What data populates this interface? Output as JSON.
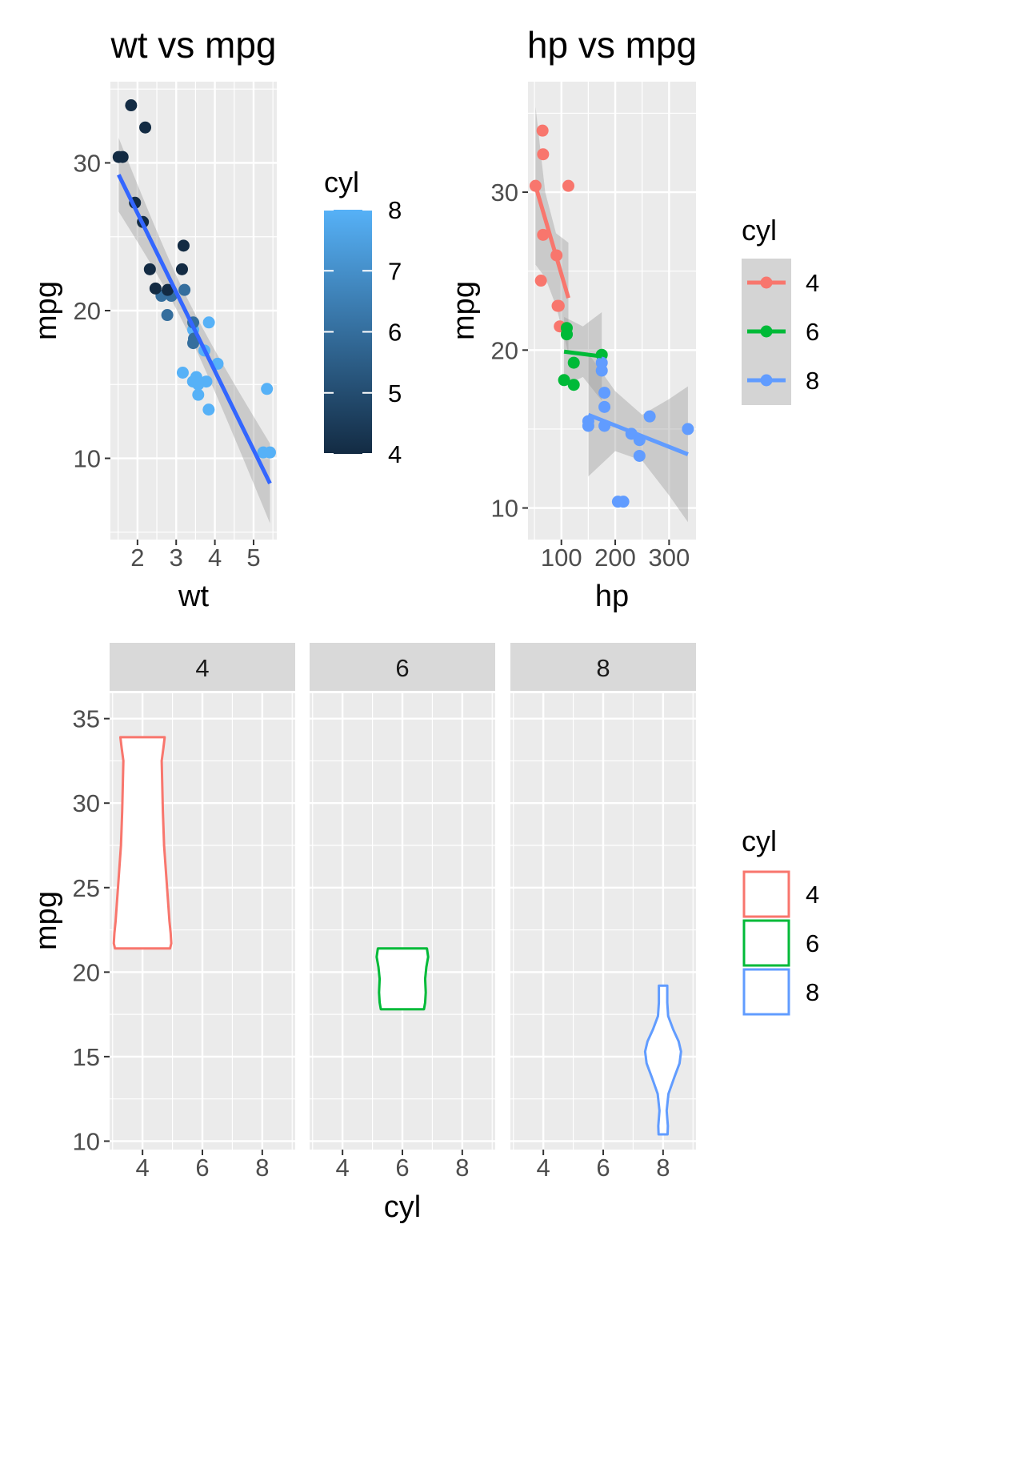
{
  "colors": {
    "panel_bg": "#EBEBEB",
    "grid": "#FFFFFF",
    "strip_bg": "#D9D9D9",
    "text": "#000000",
    "tick_text": "#4D4D4D",
    "cyl4": "#F8766D",
    "cyl6": "#00BA38",
    "cyl8": "#619CFF",
    "fit_line_wt": "#3366FF",
    "ribbon": "#999999",
    "gradient_low": "#132B43",
    "gradient_high": "#56B1F7"
  },
  "chart_data": [
    {
      "type": "scatter",
      "title": "wt vs mpg",
      "xlabel": "wt",
      "ylabel": "mpg",
      "xlim": [
        1.3,
        5.6
      ],
      "ylim": [
        4.5,
        35.5
      ],
      "xticks": [
        2,
        3,
        4,
        5
      ],
      "yticks": [
        10,
        20,
        30
      ],
      "grid": true,
      "color_by": "cyl (continuous)",
      "legend": {
        "title": "cyl",
        "placement": "right",
        "type": "colorbar",
        "range": [
          4,
          8
        ],
        "ticks": [
          4,
          5,
          6,
          7,
          8
        ]
      },
      "points": [
        {
          "x": 2.62,
          "y": 21.0,
          "cyl": 6
        },
        {
          "x": 2.875,
          "y": 21.0,
          "cyl": 6
        },
        {
          "x": 2.32,
          "y": 22.8,
          "cyl": 4
        },
        {
          "x": 3.215,
          "y": 21.4,
          "cyl": 6
        },
        {
          "x": 3.44,
          "y": 18.7,
          "cyl": 8
        },
        {
          "x": 3.46,
          "y": 18.1,
          "cyl": 6
        },
        {
          "x": 3.57,
          "y": 14.3,
          "cyl": 8
        },
        {
          "x": 3.19,
          "y": 24.4,
          "cyl": 4
        },
        {
          "x": 3.15,
          "y": 22.8,
          "cyl": 4
        },
        {
          "x": 3.44,
          "y": 19.2,
          "cyl": 6
        },
        {
          "x": 3.44,
          "y": 17.8,
          "cyl": 6
        },
        {
          "x": 4.07,
          "y": 16.4,
          "cyl": 8
        },
        {
          "x": 3.73,
          "y": 17.3,
          "cyl": 8
        },
        {
          "x": 3.78,
          "y": 15.2,
          "cyl": 8
        },
        {
          "x": 5.25,
          "y": 10.4,
          "cyl": 8
        },
        {
          "x": 5.424,
          "y": 10.4,
          "cyl": 8
        },
        {
          "x": 5.345,
          "y": 14.7,
          "cyl": 8
        },
        {
          "x": 2.2,
          "y": 32.4,
          "cyl": 4
        },
        {
          "x": 1.615,
          "y": 30.4,
          "cyl": 4
        },
        {
          "x": 1.835,
          "y": 33.9,
          "cyl": 4
        },
        {
          "x": 2.465,
          "y": 21.5,
          "cyl": 4
        },
        {
          "x": 3.52,
          "y": 15.5,
          "cyl": 8
        },
        {
          "x": 3.435,
          "y": 15.2,
          "cyl": 8
        },
        {
          "x": 3.84,
          "y": 13.3,
          "cyl": 8
        },
        {
          "x": 3.845,
          "y": 19.2,
          "cyl": 8
        },
        {
          "x": 1.935,
          "y": 27.3,
          "cyl": 4
        },
        {
          "x": 2.14,
          "y": 26.0,
          "cyl": 4
        },
        {
          "x": 1.513,
          "y": 30.4,
          "cyl": 4
        },
        {
          "x": 3.17,
          "y": 15.8,
          "cyl": 8
        },
        {
          "x": 2.77,
          "y": 19.7,
          "cyl": 6
        },
        {
          "x": 3.57,
          "y": 15.0,
          "cyl": 8
        },
        {
          "x": 2.78,
          "y": 21.4,
          "cyl": 4
        }
      ],
      "fit": {
        "intercept": 37.285,
        "slope": -5.344,
        "x_range": [
          1.513,
          5.424
        ],
        "band_halfwidth_at_ends": [
          2.5,
          2.7
        ],
        "band_halfwidth_center": 1.1,
        "x_center": 3.217
      }
    },
    {
      "type": "scatter",
      "title": "hp vs mpg",
      "xlabel": "hp",
      "ylabel": "mpg",
      "xlim": [
        38,
        350
      ],
      "ylim": [
        8,
        37
      ],
      "xticks": [
        100,
        200,
        300
      ],
      "yticks": [
        10,
        20,
        30
      ],
      "grid": true,
      "color_by": "cyl (discrete)",
      "legend": {
        "title": "cyl",
        "placement": "right",
        "entries": [
          "4",
          "6",
          "8"
        ]
      },
      "series": [
        {
          "name": "4",
          "points": [
            [
              93,
              22.8
            ],
            [
              62,
              24.4
            ],
            [
              95,
              22.8
            ],
            [
              66,
              32.4
            ],
            [
              52,
              30.4
            ],
            [
              65,
              33.9
            ],
            [
              97,
              21.5
            ],
            [
              66,
              27.3
            ],
            [
              91,
              26.0
            ],
            [
              113,
              30.4
            ],
            [
              109,
              21.4
            ]
          ],
          "fit": {
            "x_range": [
              52,
              113
            ],
            "y_range": [
              30.4,
              23.3
            ]
          },
          "band": {
            "upper": [
              [
                52,
                35.4
              ],
              [
                70,
                30.0
              ],
              [
                90,
                27.4
              ],
              [
                113,
                26.8
              ]
            ],
            "lower": [
              [
                52,
                25.4
              ],
              [
                70,
                24.6
              ],
              [
                90,
                22.8
              ],
              [
                113,
                19.8
              ]
            ]
          }
        },
        {
          "name": "6",
          "points": [
            [
              110,
              21.0
            ],
            [
              110,
              21.0
            ],
            [
              110,
              21.4
            ],
            [
              105,
              18.1
            ],
            [
              123,
              19.2
            ],
            [
              123,
              17.8
            ],
            [
              175,
              19.7
            ]
          ],
          "fit": {
            "x_range": [
              105,
              175
            ],
            "y_range": [
              19.9,
              19.6
            ]
          },
          "band": {
            "upper": [
              [
                105,
                22.1
              ],
              [
                140,
                21.5
              ],
              [
                175,
                22.4
              ]
            ],
            "lower": [
              [
                105,
                17.7
              ],
              [
                140,
                18.3
              ],
              [
                175,
                16.8
              ]
            ]
          }
        },
        {
          "name": "8",
          "points": [
            [
              175,
              18.7
            ],
            [
              245,
              14.3
            ],
            [
              180,
              16.4
            ],
            [
              180,
              17.3
            ],
            [
              180,
              15.2
            ],
            [
              205,
              10.4
            ],
            [
              215,
              10.4
            ],
            [
              230,
              14.7
            ],
            [
              150,
              15.5
            ],
            [
              150,
              15.2
            ],
            [
              245,
              13.3
            ],
            [
              175,
              19.2
            ],
            [
              264,
              15.8
            ],
            [
              335,
              15.0
            ]
          ],
          "fit": {
            "x_range": [
              150,
              335
            ],
            "y_range": [
              15.9,
              13.4
            ]
          },
          "band": {
            "upper": [
              [
                150,
                19.8
              ],
              [
                200,
                17.4
              ],
              [
                250,
                15.9
              ],
              [
                300,
                16.9
              ],
              [
                335,
                17.7
              ]
            ],
            "lower": [
              [
                150,
                12.0
              ],
              [
                200,
                13.6
              ],
              [
                250,
                13.0
              ],
              [
                300,
                10.8
              ],
              [
                335,
                9.1
              ]
            ]
          }
        }
      ]
    },
    {
      "type": "violin",
      "facet_by": "cyl",
      "facets": [
        "4",
        "6",
        "8"
      ],
      "xlabel": "cyl",
      "ylabel": "mpg",
      "xlim": [
        2.9,
        9.1
      ],
      "ylim": [
        9.5,
        36.5
      ],
      "xticks": [
        4,
        6,
        8
      ],
      "yticks": [
        10,
        15,
        20,
        25,
        30,
        35
      ],
      "grid": true,
      "fill": "#FFFFFF",
      "legend": {
        "title": "cyl",
        "placement": "right",
        "entries": [
          "4",
          "6",
          "8"
        ]
      },
      "violins": [
        {
          "facet": "4",
          "x": 4,
          "profile": [
            [
              21.4,
              0.92
            ],
            [
              21.7,
              0.96
            ],
            [
              22.3,
              0.94
            ],
            [
              23.0,
              0.9
            ],
            [
              24.0,
              0.86
            ],
            [
              25.5,
              0.8
            ],
            [
              27.5,
              0.72
            ],
            [
              29.5,
              0.68
            ],
            [
              31.0,
              0.66
            ],
            [
              32.5,
              0.64
            ],
            [
              33.3,
              0.7
            ],
            [
              33.9,
              0.74
            ]
          ]
        },
        {
          "facet": "6",
          "x": 6,
          "profile": [
            [
              17.8,
              0.72
            ],
            [
              18.2,
              0.76
            ],
            [
              18.8,
              0.78
            ],
            [
              19.6,
              0.76
            ],
            [
              20.3,
              0.8
            ],
            [
              20.9,
              0.86
            ],
            [
              21.4,
              0.82
            ]
          ]
        },
        {
          "facet": "8",
          "x": 8,
          "profile": [
            [
              10.4,
              0.15
            ],
            [
              10.9,
              0.16
            ],
            [
              11.8,
              0.12
            ],
            [
              12.8,
              0.18
            ],
            [
              13.8,
              0.38
            ],
            [
              14.6,
              0.55
            ],
            [
              15.3,
              0.6
            ],
            [
              15.9,
              0.52
            ],
            [
              16.6,
              0.34
            ],
            [
              17.4,
              0.17
            ],
            [
              18.2,
              0.14
            ],
            [
              19.2,
              0.14
            ]
          ]
        }
      ]
    }
  ]
}
